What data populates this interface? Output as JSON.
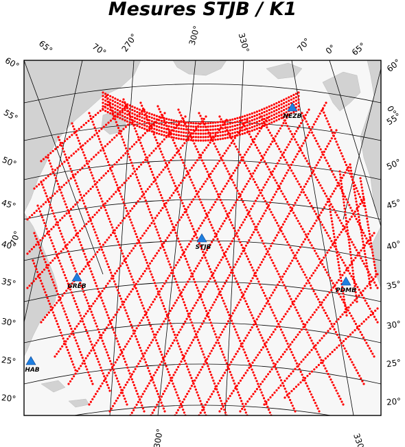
{
  "title": "Mesures STJB / K1",
  "lat_ticks_left": [
    "60°",
    "55°",
    "50°",
    "45°",
    "40°",
    "35°",
    "30°",
    "25°",
    "20°"
  ],
  "lat_ticks_right": [
    "60°",
    "55°",
    "50°",
    "45°",
    "40°",
    "35°",
    "30°",
    "25°",
    "20°"
  ],
  "lon_ticks_top": [
    "65°",
    "70°",
    "270°",
    "300°",
    "330°",
    "70°",
    "0°",
    "65°"
  ],
  "lon_ticks_bottom": [
    "300°",
    "330°"
  ],
  "lon_tick_left_extra": "70°",
  "lon_tick_right_extra": "0°",
  "stations": [
    {
      "name": "NEZB"
    },
    {
      "name": "STJB"
    },
    {
      "name": "GREB"
    },
    {
      "name": "PDMB"
    },
    {
      "name": "HAB"
    }
  ],
  "colors": {
    "track": "#ff0000",
    "station": "#1e7fe0",
    "land": "#d2d2d2",
    "ocean": "#f7f7f7",
    "graticule": "#000000"
  }
}
